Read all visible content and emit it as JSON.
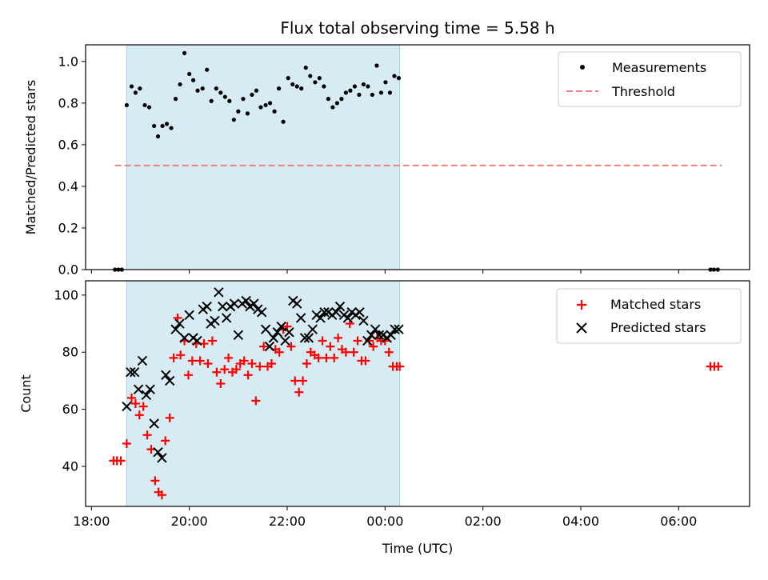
{
  "chart_data": [
    {
      "type": "scatter",
      "title": "Flux total observing time = 5.58 h",
      "ylabel": "Matched/Predicted stars",
      "xlabel": "",
      "x_unit": "hours since 18:00 UTC",
      "ylim": [
        0,
        1.08
      ],
      "yticks": [
        "0.0",
        "0.2",
        "0.4",
        "0.6",
        "0.8",
        "1.0"
      ],
      "ytick_values": [
        0.0,
        0.2,
        0.4,
        0.6,
        0.8,
        1.0
      ],
      "shaded_interval": [
        0.72,
        6.3
      ],
      "threshold": {
        "name": "Threshold",
        "y": 0.5,
        "x_range": [
          0.48,
          12.88
        ],
        "color": "#f08080"
      },
      "legend": {
        "position": "top-right",
        "entries": [
          "Measurements",
          "Threshold"
        ]
      },
      "series": [
        {
          "name": "Measurements",
          "color": "#000000",
          "x": [
            0.48,
            0.55,
            0.62,
            0.72,
            0.82,
            0.9,
            0.99,
            1.09,
            1.18,
            1.28,
            1.36,
            1.45,
            1.54,
            1.63,
            1.72,
            1.81,
            1.9,
            2.0,
            2.08,
            2.17,
            2.27,
            2.36,
            2.45,
            2.55,
            2.64,
            2.73,
            2.82,
            2.91,
            3.0,
            3.1,
            3.19,
            3.28,
            3.37,
            3.46,
            3.56,
            3.65,
            3.74,
            3.83,
            3.92,
            4.02,
            4.11,
            4.2,
            4.29,
            4.38,
            4.47,
            4.57,
            4.66,
            4.75,
            4.84,
            4.93,
            5.02,
            5.11,
            5.2,
            5.29,
            5.38,
            5.47,
            5.56,
            5.65,
            5.74,
            5.83,
            5.92,
            6.01,
            6.1,
            6.19,
            6.28,
            12.65,
            12.72,
            12.8
          ],
          "y": [
            0,
            0,
            0,
            0.79,
            0.88,
            0.85,
            0.87,
            0.79,
            0.78,
            0.69,
            0.64,
            0.69,
            0.7,
            0.68,
            0.82,
            0.89,
            1.04,
            0.94,
            0.91,
            0.86,
            0.87,
            0.96,
            0.81,
            0.87,
            0.85,
            0.83,
            0.81,
            0.72,
            0.76,
            0.82,
            0.75,
            0.84,
            0.86,
            0.78,
            0.79,
            0.8,
            0.76,
            0.87,
            0.71,
            0.92,
            0.89,
            0.88,
            0.87,
            0.97,
            0.93,
            0.9,
            0.92,
            0.88,
            0.82,
            0.78,
            0.8,
            0.82,
            0.85,
            0.86,
            0.88,
            0.84,
            0.89,
            0.88,
            0.84,
            0.98,
            0.85,
            0.9,
            0.85,
            0.93,
            0.92,
            0,
            0,
            0
          ]
        }
      ]
    },
    {
      "type": "scatter",
      "title": "",
      "ylabel": "Count",
      "xlabel": "Time (UTC)",
      "x_unit": "hours since 18:00 UTC",
      "ylim": [
        26,
        105
      ],
      "yticks": [
        "40",
        "60",
        "80",
        "100"
      ],
      "ytick_values": [
        40,
        60,
        80,
        100
      ],
      "xlim": [
        -0.12,
        13.45
      ],
      "xticks": [
        "18:00",
        "20:00",
        "22:00",
        "00:00",
        "02:00",
        "04:00",
        "06:00"
      ],
      "xtick_values": [
        0,
        2,
        4,
        6,
        8,
        10,
        12
      ],
      "shaded_interval": [
        0.72,
        6.3
      ],
      "legend": {
        "position": "top-right",
        "entries": [
          "Matched stars",
          "Predicted stars"
        ]
      },
      "series": [
        {
          "name": "Matched stars",
          "marker": "plus",
          "color": "#ff0000",
          "x": [
            0.45,
            0.52,
            0.6,
            0.72,
            0.82,
            0.9,
            0.98,
            1.06,
            1.14,
            1.22,
            1.3,
            1.37,
            1.44,
            1.51,
            1.6,
            1.68,
            1.76,
            1.82,
            1.9,
            1.98,
            2.06,
            2.14,
            2.22,
            2.3,
            2.38,
            2.47,
            2.56,
            2.64,
            2.72,
            2.8,
            2.88,
            2.96,
            3.04,
            3.12,
            3.2,
            3.28,
            3.36,
            3.44,
            3.52,
            3.6,
            3.68,
            3.76,
            3.84,
            3.92,
            4.0,
            4.08,
            4.16,
            4.24,
            4.32,
            4.4,
            4.48,
            4.56,
            4.64,
            4.72,
            4.8,
            4.88,
            4.96,
            5.04,
            5.12,
            5.2,
            5.28,
            5.36,
            5.44,
            5.52,
            5.6,
            5.68,
            5.76,
            5.84,
            5.92,
            6.0,
            6.08,
            6.16,
            6.24,
            6.3,
            12.65,
            12.73,
            12.81
          ],
          "y": [
            42,
            42,
            42,
            48,
            64,
            62,
            58,
            61,
            51,
            46,
            35,
            31,
            30,
            49,
            57,
            78,
            92,
            79,
            84,
            72,
            77,
            83,
            77,
            83,
            76,
            84,
            73,
            69,
            74,
            78,
            73,
            74,
            76,
            77,
            72,
            76,
            63,
            75,
            82,
            75,
            76,
            81,
            80,
            88,
            89,
            82,
            70,
            66,
            70,
            76,
            80,
            79,
            78,
            84,
            78,
            82,
            78,
            85,
            81,
            80,
            90,
            80,
            84,
            77,
            77,
            84,
            82,
            85,
            84,
            84,
            80,
            75,
            75,
            75,
            75,
            75,
            75
          ]
        },
        {
          "name": "Predicted stars",
          "marker": "x",
          "color": "#000000",
          "x": [
            0.72,
            0.8,
            0.88,
            0.96,
            1.04,
            1.12,
            1.2,
            1.28,
            1.36,
            1.44,
            1.52,
            1.6,
            1.72,
            1.8,
            1.9,
            2.0,
            2.08,
            2.16,
            2.28,
            2.36,
            2.44,
            2.52,
            2.6,
            2.68,
            2.76,
            2.84,
            2.92,
            3.0,
            3.08,
            3.16,
            3.24,
            3.32,
            3.4,
            3.48,
            3.56,
            3.64,
            3.72,
            3.8,
            3.88,
            3.96,
            4.04,
            4.12,
            4.2,
            4.28,
            4.36,
            4.44,
            4.52,
            4.6,
            4.68,
            4.76,
            4.84,
            4.92,
            5.0,
            5.08,
            5.16,
            5.24,
            5.32,
            5.4,
            5.48,
            5.56,
            5.64,
            5.72,
            5.8,
            5.88,
            5.96,
            6.04,
            6.12,
            6.2,
            6.28
          ],
          "y": [
            61,
            73,
            73,
            67,
            77,
            65,
            67,
            55,
            45,
            43,
            72,
            70,
            88,
            90,
            85,
            93,
            85,
            84,
            95,
            96,
            90,
            91,
            101,
            96,
            92,
            96,
            97,
            86,
            97,
            98,
            96,
            97,
            95,
            94,
            88,
            82,
            85,
            87,
            89,
            84,
            87,
            98,
            97,
            92,
            85,
            85,
            88,
            93,
            92,
            94,
            94,
            93,
            94,
            96,
            93,
            92,
            94,
            93,
            94,
            91,
            84,
            86,
            88,
            86,
            86,
            85,
            86,
            88,
            88
          ]
        }
      ]
    }
  ]
}
